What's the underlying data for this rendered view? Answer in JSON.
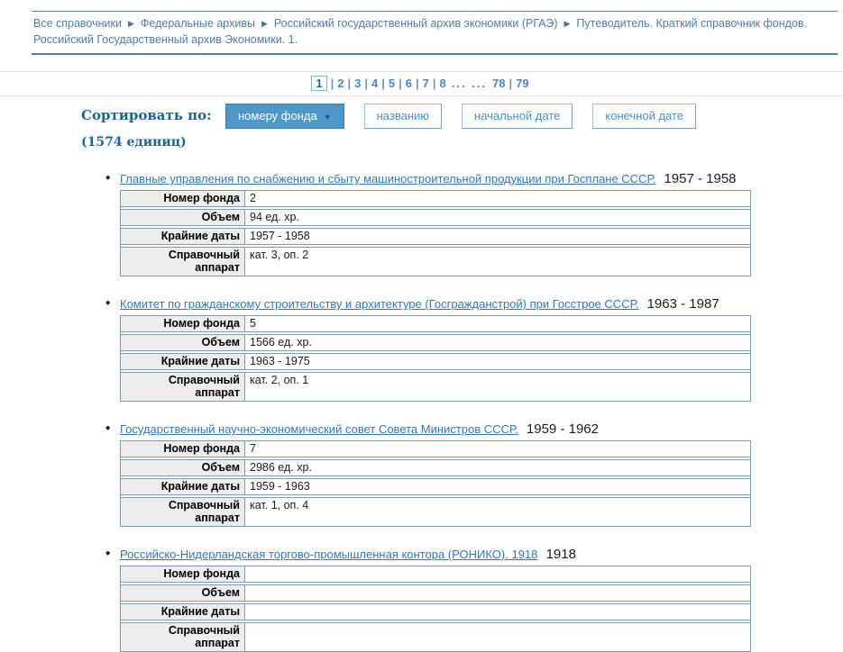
{
  "breadcrumb": {
    "separator": "▶",
    "items": [
      "Все справочники",
      "Федеральные архивы",
      "Российский государственный архив экономики (РГАЭ)",
      "Путеводитель. Краткий справочник фондов. Российский Государственный архив Экономики. 1."
    ]
  },
  "pagination": {
    "current": "1",
    "separator": "|",
    "ellipsis": "... ...",
    "pages_before_ellipsis": [
      "2",
      "3",
      "4",
      "5",
      "6",
      "7",
      "8"
    ],
    "pages_after_ellipsis": [
      "78",
      "79"
    ]
  },
  "sort": {
    "label": "Сортировать по:",
    "count": "(1574 единиц)",
    "active_arrow": "▼",
    "buttons": [
      {
        "label": "номеру фонда",
        "active": true
      },
      {
        "label": "названию",
        "active": false
      },
      {
        "label": "начальной дате",
        "active": false
      },
      {
        "label": "конечной дате",
        "active": false
      }
    ]
  },
  "list": {
    "bullet": "◆",
    "field_labels": [
      "Номер фонда",
      "Объем",
      "Крайние даты",
      "Справочный аппарат"
    ],
    "items": [
      {
        "title": "Главные управления по снабжению и сбыту машиностроительной продукции при Госплане СССР.",
        "dates_display": "1957 - 1958",
        "fields": [
          "2",
          "94 ед. хр.",
          "1957 - 1958",
          "кат. 3, оп. 2"
        ]
      },
      {
        "title": "Комитет по гражданскому строительству и архитектуре (Госгражданстрой) при Госстрое СССР.",
        "dates_display": "1963 - 1987",
        "fields": [
          "5",
          "1566 ед. хр.",
          "1963 - 1975",
          "кат. 2, оп. 1"
        ]
      },
      {
        "title": "Государственный научно-экономический совет Совета Министров СССР.",
        "dates_display": "1959 - 1962",
        "fields": [
          "7",
          "2986 ед. хр.",
          "1959 - 1963",
          "кат. 1, оп. 4"
        ]
      },
      {
        "title": "Российско-Нидерландская торгово-промышленная контора (РОНИКО). 1918",
        "dates_display": "1918",
        "fields": [
          "",
          "",
          "",
          ""
        ]
      }
    ]
  },
  "colors": {
    "link_blue": "#3377bb",
    "breadcrumb_blue": "#4d7ca8",
    "heading_teal": "#1c6593",
    "active_button_bg": "#4e97c9",
    "button_border": "#9dc0da",
    "table_border": "#7d9cb8",
    "table_label_bg": "#ededed",
    "rule_gray": "#e2e2e2"
  }
}
